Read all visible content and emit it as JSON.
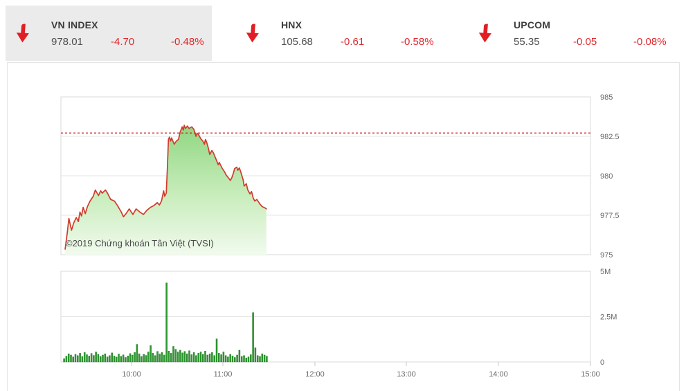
{
  "header": {
    "tabs": [
      {
        "label": "VN INDEX",
        "value": "978.01",
        "change": "-4.70",
        "change_pct": "-0.48%",
        "direction": "down",
        "active": true
      },
      {
        "label": "HNX",
        "value": "105.68",
        "change": "-0.61",
        "change_pct": "-0.58%",
        "direction": "down",
        "active": false
      },
      {
        "label": "UPCOM",
        "value": "55.35",
        "change": "-0.05",
        "change_pct": "-0.08%",
        "direction": "down",
        "active": false
      }
    ]
  },
  "watermark": "©2019 Chứng khoán Tân Việt (TVSI)",
  "colors": {
    "negative_text": "#e0262c",
    "arrow_red": "#e01e24",
    "price_line": "#d23a2c",
    "area_top": "#8ed680",
    "area_mid": "#c9edbc",
    "area_bottom": "#f1faee",
    "volume_bar": "#2f9931",
    "volume_bar_edge": "#1d7a20",
    "reference_line": "#d40000",
    "gridline": "#e6e6e6",
    "pane_border": "#d9d9d9",
    "axis_label": "#666666",
    "active_tab_bg": "#ebebeb"
  },
  "chart_data": {
    "type": "area",
    "title": "VN-Index intraday with volume",
    "x_axis": {
      "start": "09:15",
      "end": "15:00",
      "data_end": "11:30",
      "ticks": [
        {
          "label": "10:00",
          "f": 0.1333
        },
        {
          "label": "11:00",
          "f": 0.3059
        },
        {
          "label": "12:00",
          "f": 0.4797
        },
        {
          "label": "13:00",
          "f": 0.6523
        },
        {
          "label": "14:00",
          "f": 0.8261
        },
        {
          "label": "15:00",
          "f": 1.0
        }
      ]
    },
    "price_pane": {
      "ylim": [
        975,
        985
      ],
      "ticks": [
        {
          "v": 975,
          "label": "975"
        },
        {
          "v": 977.5,
          "label": "977.5"
        },
        {
          "v": 980,
          "label": "980"
        },
        {
          "v": 982.5,
          "label": "982.5"
        },
        {
          "v": 985,
          "label": "985"
        }
      ],
      "reference_line": {
        "value": 982.71,
        "style": "dashed"
      },
      "points": [
        [
          0.008,
          975.35
        ],
        [
          0.012,
          976.4
        ],
        [
          0.015,
          977.3
        ],
        [
          0.02,
          976.55
        ],
        [
          0.024,
          977.0
        ],
        [
          0.029,
          977.35
        ],
        [
          0.033,
          977.1
        ],
        [
          0.036,
          977.7
        ],
        [
          0.039,
          977.45
        ],
        [
          0.042,
          978.0
        ],
        [
          0.046,
          977.6
        ],
        [
          0.05,
          978.05
        ],
        [
          0.055,
          978.4
        ],
        [
          0.061,
          978.7
        ],
        [
          0.065,
          979.1
        ],
        [
          0.071,
          978.75
        ],
        [
          0.075,
          979.05
        ],
        [
          0.078,
          978.9
        ],
        [
          0.084,
          979.1
        ],
        [
          0.088,
          978.9
        ],
        [
          0.094,
          978.5
        ],
        [
          0.101,
          978.4
        ],
        [
          0.107,
          978.1
        ],
        [
          0.114,
          977.7
        ],
        [
          0.118,
          977.4
        ],
        [
          0.123,
          977.6
        ],
        [
          0.129,
          977.9
        ],
        [
          0.136,
          977.55
        ],
        [
          0.142,
          977.9
        ],
        [
          0.149,
          977.7
        ],
        [
          0.156,
          977.55
        ],
        [
          0.162,
          977.8
        ],
        [
          0.169,
          978.0
        ],
        [
          0.175,
          978.1
        ],
        [
          0.182,
          978.3
        ],
        [
          0.186,
          978.15
        ],
        [
          0.19,
          978.4
        ],
        [
          0.194,
          979.05
        ],
        [
          0.196,
          978.7
        ],
        [
          0.199,
          978.9
        ],
        [
          0.201,
          980.5
        ],
        [
          0.203,
          982.3
        ],
        [
          0.205,
          982.45
        ],
        [
          0.207,
          982.2
        ],
        [
          0.209,
          982.4
        ],
        [
          0.214,
          982.0
        ],
        [
          0.218,
          982.2
        ],
        [
          0.222,
          982.3
        ],
        [
          0.225,
          982.75
        ],
        [
          0.229,
          983.1
        ],
        [
          0.231,
          982.9
        ],
        [
          0.233,
          983.2
        ],
        [
          0.235,
          983.0
        ],
        [
          0.239,
          983.15
        ],
        [
          0.242,
          983.0
        ],
        [
          0.247,
          983.1
        ],
        [
          0.251,
          982.95
        ],
        [
          0.255,
          982.5
        ],
        [
          0.257,
          982.7
        ],
        [
          0.26,
          982.6
        ],
        [
          0.264,
          982.35
        ],
        [
          0.268,
          982.2
        ],
        [
          0.271,
          982.0
        ],
        [
          0.273,
          982.3
        ],
        [
          0.275,
          982.15
        ],
        [
          0.278,
          981.8
        ],
        [
          0.281,
          981.35
        ],
        [
          0.285,
          981.6
        ],
        [
          0.288,
          981.45
        ],
        [
          0.293,
          981.05
        ],
        [
          0.297,
          980.7
        ],
        [
          0.299,
          980.85
        ],
        [
          0.305,
          980.45
        ],
        [
          0.309,
          980.25
        ],
        [
          0.312,
          980.05
        ],
        [
          0.318,
          979.8
        ],
        [
          0.32,
          979.7
        ],
        [
          0.323,
          979.9
        ],
        [
          0.326,
          980.2
        ],
        [
          0.328,
          980.45
        ],
        [
          0.332,
          980.55
        ],
        [
          0.334,
          980.35
        ],
        [
          0.337,
          980.5
        ],
        [
          0.34,
          980.2
        ],
        [
          0.344,
          979.75
        ],
        [
          0.346,
          979.35
        ],
        [
          0.35,
          979.5
        ],
        [
          0.353,
          979.1
        ],
        [
          0.357,
          978.85
        ],
        [
          0.36,
          979.0
        ],
        [
          0.363,
          978.6
        ],
        [
          0.366,
          978.4
        ],
        [
          0.37,
          978.5
        ],
        [
          0.373,
          978.35
        ],
        [
          0.376,
          978.2
        ],
        [
          0.38,
          978.05
        ],
        [
          0.383,
          978.0
        ],
        [
          0.386,
          977.95
        ],
        [
          0.388,
          977.9
        ]
      ]
    },
    "volume_pane": {
      "ylim_millions": [
        0,
        5
      ],
      "ticks": [
        {
          "v": 0,
          "label": "0"
        },
        {
          "v": 2.5,
          "label": "2.5M"
        },
        {
          "v": 5,
          "label": "5M"
        }
      ],
      "bars": {
        "start_fraction": 0.006,
        "step_fraction": 0.0043,
        "values_millions": [
          0.18,
          0.32,
          0.45,
          0.38,
          0.28,
          0.42,
          0.35,
          0.48,
          0.3,
          0.52,
          0.4,
          0.33,
          0.47,
          0.36,
          0.55,
          0.42,
          0.3,
          0.38,
          0.45,
          0.28,
          0.35,
          0.5,
          0.33,
          0.27,
          0.44,
          0.31,
          0.39,
          0.25,
          0.33,
          0.46,
          0.38,
          0.52,
          0.97,
          0.45,
          0.3,
          0.42,
          0.36,
          0.55,
          0.9,
          0.48,
          0.35,
          0.58,
          0.44,
          0.52,
          0.38,
          4.36,
          0.6,
          0.48,
          0.86,
          0.7,
          0.55,
          0.65,
          0.5,
          0.58,
          0.45,
          0.62,
          0.4,
          0.52,
          0.35,
          0.48,
          0.55,
          0.42,
          0.6,
          0.38,
          0.45,
          0.52,
          0.35,
          1.27,
          0.48,
          0.4,
          0.55,
          0.35,
          0.28,
          0.42,
          0.33,
          0.25,
          0.38,
          0.65,
          0.3,
          0.35,
          0.22,
          0.28,
          0.4,
          2.72,
          0.78,
          0.35,
          0.3,
          0.45,
          0.38,
          0.32
        ]
      }
    }
  }
}
